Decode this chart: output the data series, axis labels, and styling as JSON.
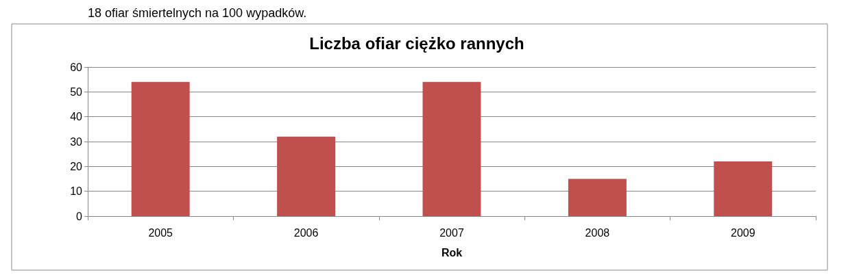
{
  "chart_data": {
    "type": "bar",
    "title": "Liczba ofiar ciężko rannych",
    "xlabel": "Rok",
    "categories": [
      "2005",
      "2006",
      "2007",
      "2008",
      "2009"
    ],
    "values": [
      54,
      32,
      54,
      15,
      22
    ],
    "color": "#c0504d",
    "ylim": [
      0,
      60
    ],
    "yticks": [
      0,
      10,
      20,
      30,
      40,
      50,
      60
    ],
    "grid": "y",
    "annotations": [
      "18 ofiar śmiertelnych na 100 wypadków."
    ]
  }
}
